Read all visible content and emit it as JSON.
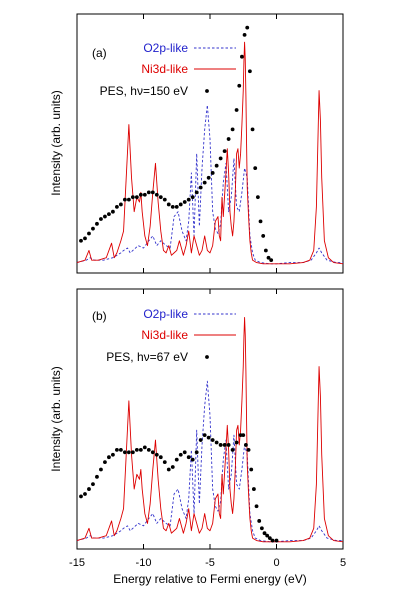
{
  "chart_data": [
    {
      "type": "line",
      "panel_label": "(a)",
      "ylabel": "Intensity (arb. units)",
      "xlim": [
        -15,
        5
      ],
      "ylim": [
        0,
        1
      ],
      "grid": false,
      "legend_position": "top-left",
      "series": [
        {
          "name": "O2p-like",
          "style": "dashed",
          "color": "#3333cc",
          "x": [
            -15,
            -14.3,
            -14,
            -13.7,
            -13,
            -12.3,
            -12,
            -11.7,
            -11.5,
            -11.2,
            -11,
            -10.8,
            -10.4,
            -10,
            -9.6,
            -9.3,
            -9,
            -8.7,
            -8.3,
            -8,
            -7.7,
            -7.4,
            -7.1,
            -6.8,
            -6.6,
            -6.4,
            -6.2,
            -6,
            -5.8,
            -5.6,
            -5.4,
            -5.2,
            -5,
            -4.8,
            -4.6,
            -4.4,
            -4.2,
            -4,
            -3.8,
            -3.6,
            -3.4,
            -3.2,
            -3,
            -2.8,
            -2.6,
            -2.4,
            -2.2,
            -2,
            -1.8,
            -1.6,
            -1.2,
            -0.5,
            0,
            1,
            2,
            2.6,
            3,
            3.2,
            3.4,
            3.8,
            4.5,
            5
          ],
          "y": [
            0.01,
            0.02,
            0.03,
            0.02,
            0.02,
            0.03,
            0.04,
            0.05,
            0.06,
            0.07,
            0.05,
            0.06,
            0.08,
            0.07,
            0.1,
            0.12,
            0.08,
            0.1,
            0.08,
            0.07,
            0.2,
            0.22,
            0.14,
            0.1,
            0.18,
            0.38,
            0.12,
            0.46,
            0.16,
            0.4,
            0.56,
            0.66,
            0.52,
            0.22,
            0.15,
            0.13,
            0.17,
            0.34,
            0.42,
            0.22,
            0.28,
            0.44,
            0.24,
            0.22,
            0.3,
            0.4,
            0.36,
            0.12,
            0.05,
            0.02,
            0.01,
            0.005,
            0.005,
            0.01,
            0.01,
            0.02,
            0.05,
            0.07,
            0.05,
            0.02,
            0.01,
            0.01
          ]
        },
        {
          "name": "Ni3d-like",
          "style": "solid",
          "color": "#dd0000",
          "x": [
            -15,
            -14.4,
            -14.1,
            -13.9,
            -13.4,
            -12.8,
            -12.4,
            -12.2,
            -12,
            -11.7,
            -11.5,
            -11.3,
            -11.1,
            -10.9,
            -10.7,
            -10.5,
            -10.3,
            -10.2,
            -10.1,
            -9.9,
            -9.7,
            -9.5,
            -9.3,
            -9.1,
            -8.9,
            -8.7,
            -8.5,
            -8.3,
            -8.1,
            -7.9,
            -7.7,
            -7.5,
            -7.3,
            -7,
            -6.8,
            -6.6,
            -6.4,
            -6.2,
            -6,
            -5.8,
            -5.6,
            -5.4,
            -5.2,
            -5,
            -4.8,
            -4.6,
            -4.4,
            -4.3,
            -4.2,
            -4.1,
            -4,
            -3.8,
            -3.7,
            -3.6,
            -3.5,
            -3.4,
            -3.3,
            -3.2,
            -3.1,
            -3,
            -2.9,
            -2.8,
            -2.7,
            -2.6,
            -2.5,
            -2.45,
            -2.4,
            -2.35,
            -2.3,
            -2.25,
            -2.2,
            -2.1,
            -2,
            -1.9,
            -1.8,
            -1.5,
            -1,
            0,
            1,
            2,
            2.5,
            2.8,
            3,
            3.1,
            3.2,
            3.3,
            3.4,
            3.6,
            3.9,
            4.3,
            5
          ],
          "y": [
            0.01,
            0.02,
            0.06,
            0.02,
            0.02,
            0.03,
            0.09,
            0.03,
            0.05,
            0.1,
            0.14,
            0.36,
            0.58,
            0.36,
            0.22,
            0.28,
            0.26,
            0.3,
            0.22,
            0.12,
            0.08,
            0.16,
            0.3,
            0.42,
            0.26,
            0.14,
            0.06,
            0.05,
            0.08,
            0.04,
            0.05,
            0.06,
            0.1,
            0.04,
            0.08,
            0.14,
            0.05,
            0.12,
            0.08,
            0.04,
            0.06,
            0.12,
            0.06,
            0.05,
            0.08,
            0.18,
            0.2,
            0.12,
            0.1,
            0.28,
            0.2,
            0.38,
            0.48,
            0.38,
            0.22,
            0.16,
            0.12,
            0.18,
            0.3,
            0.46,
            0.48,
            0.4,
            0.46,
            0.58,
            0.72,
            0.84,
            0.92,
            0.85,
            0.7,
            0.5,
            0.32,
            0.2,
            0.1,
            0.05,
            0.02,
            0.01,
            0.005,
            0.005,
            0.005,
            0.01,
            0.02,
            0.06,
            0.24,
            0.48,
            0.72,
            0.6,
            0.36,
            0.1,
            0.03,
            0.01,
            0.005
          ]
        },
        {
          "name": "PES, hν=150 eV",
          "style": "markers",
          "color": "#000000",
          "x": [
            -14.7,
            -14.4,
            -14.1,
            -13.8,
            -13.5,
            -13.2,
            -12.9,
            -12.6,
            -12.3,
            -12,
            -11.7,
            -11.4,
            -11.1,
            -10.8,
            -10.5,
            -10.2,
            -9.9,
            -9.6,
            -9.3,
            -9,
            -8.7,
            -8.4,
            -8.1,
            -7.8,
            -7.5,
            -7.2,
            -6.9,
            -6.6,
            -6.3,
            -6,
            -5.7,
            -5.4,
            -5.1,
            -4.8,
            -4.5,
            -4.2,
            -3.9,
            -3.6,
            -3.3,
            -3,
            -2.8,
            -2.6,
            -2.4,
            -2.2,
            -2,
            -1.8,
            -1.6,
            -1.4,
            -1.2,
            -1,
            -0.8,
            -0.6,
            -0.4
          ],
          "y": [
            0.1,
            0.11,
            0.13,
            0.15,
            0.17,
            0.19,
            0.2,
            0.21,
            0.22,
            0.24,
            0.25,
            0.27,
            0.27,
            0.28,
            0.28,
            0.29,
            0.29,
            0.3,
            0.3,
            0.29,
            0.28,
            0.27,
            0.25,
            0.24,
            0.24,
            0.25,
            0.26,
            0.27,
            0.28,
            0.3,
            0.32,
            0.34,
            0.36,
            0.38,
            0.41,
            0.44,
            0.47,
            0.52,
            0.56,
            0.64,
            0.74,
            0.86,
            0.95,
            0.98,
            0.8,
            0.56,
            0.4,
            0.28,
            0.18,
            0.12,
            0.06,
            0.03,
            0.02
          ]
        }
      ]
    },
    {
      "type": "line",
      "panel_label": "(b)",
      "xlabel": "Energy relative to Fermi energy (eV)",
      "ylabel": "Intensity (arb. units)",
      "xlim": [
        -15,
        5
      ],
      "ylim": [
        0,
        1
      ],
      "xticks": [
        -15,
        -10,
        -5,
        0,
        5
      ],
      "grid": false,
      "legend_position": "top-left",
      "series": [
        {
          "name": "O2p-like",
          "style": "dashed",
          "color": "#3333cc",
          "x": [
            -15,
            -14.3,
            -14,
            -13.7,
            -13,
            -12.3,
            -12,
            -11.7,
            -11.5,
            -11.2,
            -11,
            -10.8,
            -10.4,
            -10,
            -9.6,
            -9.3,
            -9,
            -8.7,
            -8.3,
            -8,
            -7.7,
            -7.4,
            -7.1,
            -6.8,
            -6.6,
            -6.4,
            -6.2,
            -6,
            -5.8,
            -5.6,
            -5.4,
            -5.2,
            -5,
            -4.8,
            -4.6,
            -4.4,
            -4.2,
            -4,
            -3.8,
            -3.6,
            -3.4,
            -3.2,
            -3,
            -2.8,
            -2.6,
            -2.4,
            -2.2,
            -2,
            -1.8,
            -1.6,
            -1.2,
            -0.5,
            0,
            1,
            2,
            2.6,
            3,
            3.2,
            3.4,
            3.8,
            4.5,
            5
          ],
          "y": [
            0.01,
            0.02,
            0.03,
            0.02,
            0.02,
            0.03,
            0.04,
            0.05,
            0.06,
            0.07,
            0.05,
            0.06,
            0.08,
            0.07,
            0.1,
            0.12,
            0.08,
            0.1,
            0.08,
            0.07,
            0.2,
            0.22,
            0.14,
            0.1,
            0.18,
            0.38,
            0.12,
            0.46,
            0.16,
            0.4,
            0.56,
            0.66,
            0.52,
            0.22,
            0.15,
            0.13,
            0.17,
            0.34,
            0.42,
            0.22,
            0.28,
            0.44,
            0.24,
            0.22,
            0.3,
            0.4,
            0.36,
            0.12,
            0.05,
            0.02,
            0.01,
            0.005,
            0.005,
            0.01,
            0.01,
            0.02,
            0.05,
            0.07,
            0.05,
            0.02,
            0.01,
            0.01
          ]
        },
        {
          "name": "Ni3d-like",
          "style": "solid",
          "color": "#dd0000",
          "x": [
            -15,
            -14.4,
            -14.1,
            -13.9,
            -13.4,
            -12.8,
            -12.4,
            -12.2,
            -12,
            -11.7,
            -11.5,
            -11.3,
            -11.1,
            -10.9,
            -10.7,
            -10.5,
            -10.3,
            -10.2,
            -10.1,
            -9.9,
            -9.7,
            -9.5,
            -9.3,
            -9.1,
            -8.9,
            -8.7,
            -8.5,
            -8.3,
            -8.1,
            -7.9,
            -7.7,
            -7.5,
            -7.3,
            -7,
            -6.8,
            -6.6,
            -6.4,
            -6.2,
            -6,
            -5.8,
            -5.6,
            -5.4,
            -5.2,
            -5,
            -4.8,
            -4.6,
            -4.4,
            -4.3,
            -4.2,
            -4.1,
            -4,
            -3.8,
            -3.7,
            -3.6,
            -3.5,
            -3.4,
            -3.3,
            -3.2,
            -3.1,
            -3,
            -2.9,
            -2.8,
            -2.7,
            -2.6,
            -2.5,
            -2.45,
            -2.4,
            -2.35,
            -2.3,
            -2.25,
            -2.2,
            -2.1,
            -2,
            -1.9,
            -1.8,
            -1.5,
            -1,
            0,
            1,
            2,
            2.5,
            2.8,
            3,
            3.1,
            3.2,
            3.3,
            3.4,
            3.6,
            3.9,
            4.3,
            5
          ],
          "y": [
            0.01,
            0.02,
            0.06,
            0.02,
            0.02,
            0.03,
            0.09,
            0.03,
            0.05,
            0.1,
            0.14,
            0.36,
            0.58,
            0.36,
            0.22,
            0.28,
            0.26,
            0.3,
            0.22,
            0.12,
            0.08,
            0.16,
            0.3,
            0.42,
            0.26,
            0.14,
            0.06,
            0.05,
            0.08,
            0.04,
            0.05,
            0.06,
            0.1,
            0.04,
            0.08,
            0.14,
            0.05,
            0.12,
            0.08,
            0.04,
            0.06,
            0.12,
            0.06,
            0.05,
            0.08,
            0.18,
            0.2,
            0.12,
            0.1,
            0.28,
            0.2,
            0.38,
            0.48,
            0.38,
            0.22,
            0.16,
            0.12,
            0.18,
            0.3,
            0.46,
            0.48,
            0.4,
            0.46,
            0.58,
            0.72,
            0.84,
            0.92,
            0.85,
            0.7,
            0.5,
            0.32,
            0.2,
            0.1,
            0.05,
            0.02,
            0.01,
            0.005,
            0.005,
            0.005,
            0.01,
            0.02,
            0.06,
            0.24,
            0.48,
            0.72,
            0.6,
            0.36,
            0.1,
            0.03,
            0.01,
            0.005
          ]
        },
        {
          "name": "PES, hν=67 eV",
          "style": "markers",
          "color": "#000000",
          "x": [
            -14.7,
            -14.4,
            -14.1,
            -13.8,
            -13.5,
            -13.2,
            -12.9,
            -12.6,
            -12.3,
            -12,
            -11.7,
            -11.4,
            -11.1,
            -10.8,
            -10.5,
            -10.2,
            -9.9,
            -9.6,
            -9.3,
            -9,
            -8.7,
            -8.4,
            -8.1,
            -7.8,
            -7.5,
            -7.2,
            -6.9,
            -6.6,
            -6.3,
            -6,
            -5.7,
            -5.4,
            -5.1,
            -4.8,
            -4.5,
            -4.2,
            -3.9,
            -3.6,
            -3.3,
            -3,
            -2.7,
            -2.5,
            -2.3,
            -2.1,
            -1.9,
            -1.7,
            -1.5,
            -1.3,
            -1.1,
            -0.9,
            -0.7,
            -0.5,
            -0.3,
            0
          ],
          "y": [
            0.19,
            0.2,
            0.22,
            0.24,
            0.27,
            0.3,
            0.33,
            0.35,
            0.36,
            0.38,
            0.38,
            0.37,
            0.37,
            0.37,
            0.38,
            0.38,
            0.39,
            0.38,
            0.37,
            0.36,
            0.35,
            0.33,
            0.3,
            0.31,
            0.34,
            0.36,
            0.37,
            0.35,
            0.34,
            0.37,
            0.42,
            0.44,
            0.43,
            0.42,
            0.41,
            0.4,
            0.4,
            0.4,
            0.38,
            0.41,
            0.44,
            0.44,
            0.4,
            0.38,
            0.3,
            0.22,
            0.15,
            0.09,
            0.06,
            0.04,
            0.03,
            0.02,
            0.01,
            0.01
          ]
        }
      ]
    }
  ]
}
